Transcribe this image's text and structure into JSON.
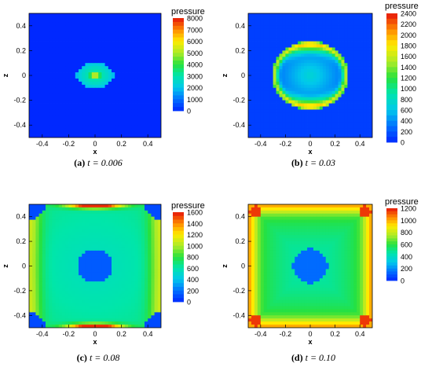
{
  "chart_data": [
    {
      "type": "heatmap",
      "panel": "a",
      "caption_label": "(a)",
      "caption_text": "t = 0.006",
      "xlabel": "x",
      "ylabel": "z",
      "xlim": [
        -0.5,
        0.5
      ],
      "ylim": [
        -0.5,
        0.5
      ],
      "xticks": [
        "-0.4",
        "-0.2",
        "0",
        "0.2",
        "0.4"
      ],
      "yticks": [
        "0.4",
        "0.2",
        "0",
        "-0.2",
        "-0.4"
      ],
      "legend_title": "pressure",
      "legend_levels": [
        "8000",
        "7000",
        "6000",
        "5000",
        "4000",
        "3000",
        "2000",
        "1000",
        "0"
      ],
      "vmin": 0,
      "vmax": 8500
    },
    {
      "type": "heatmap",
      "panel": "b",
      "caption_label": "(b)",
      "caption_text": "t = 0.03",
      "xlabel": "x",
      "ylabel": "z",
      "xlim": [
        -0.5,
        0.5
      ],
      "ylim": [
        -0.5,
        0.5
      ],
      "xticks": [
        "-0.4",
        "-0.2",
        "0",
        "0.2",
        "0.4"
      ],
      "yticks": [
        "0.4",
        "0.2",
        "0",
        "-0.2",
        "-0.4"
      ],
      "legend_title": "pressure",
      "legend_levels": [
        "2400",
        "2200",
        "2000",
        "1800",
        "1600",
        "1400",
        "1200",
        "1000",
        "800",
        "600",
        "400",
        "200",
        "0"
      ],
      "vmin": 0,
      "vmax": 2500
    },
    {
      "type": "heatmap",
      "panel": "c",
      "caption_label": "(c)",
      "caption_text": "t = 0.08",
      "xlabel": "x",
      "ylabel": "z",
      "xlim": [
        -0.5,
        0.5
      ],
      "ylim": [
        -0.5,
        0.5
      ],
      "xticks": [
        "-0.4",
        "-0.2",
        "0",
        "0.2",
        "0.4"
      ],
      "yticks": [
        "0.4",
        "0.2",
        "0",
        "-0.2",
        "-0.4"
      ],
      "legend_title": "pressure",
      "legend_levels": [
        "1600",
        "1400",
        "1200",
        "1000",
        "800",
        "600",
        "400",
        "200",
        "0"
      ],
      "vmin": 0,
      "vmax": 1700
    },
    {
      "type": "heatmap",
      "panel": "d",
      "caption_label": "(d)",
      "caption_text": "t = 0.10",
      "xlabel": "x",
      "ylabel": "z",
      "xlim": [
        -0.5,
        0.5
      ],
      "ylim": [
        -0.5,
        0.5
      ],
      "xticks": [
        "-0.4",
        "-0.2",
        "0",
        "0.2",
        "0.4"
      ],
      "yticks": [
        "0.4",
        "0.2",
        "0",
        "-0.2",
        "-0.4"
      ],
      "legend_title": "pressure",
      "legend_levels": [
        "1200",
        "1000",
        "800",
        "600",
        "400",
        "200",
        "0"
      ],
      "vmin": 0,
      "vmax": 1300
    }
  ]
}
